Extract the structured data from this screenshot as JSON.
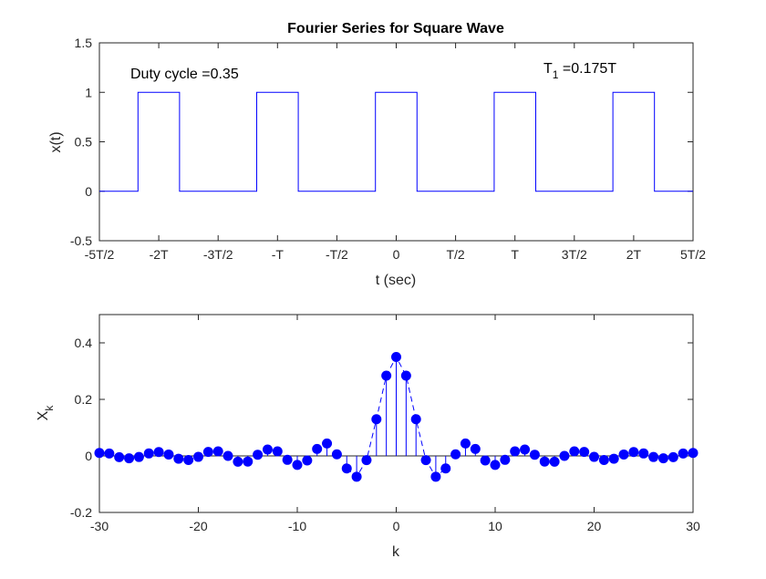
{
  "chart_data": [
    {
      "type": "line",
      "title": "Fourier Series for Square Wave",
      "xlabel": "t (sec)",
      "ylabel": "x(t)",
      "xlim": [
        -2.5,
        2.5
      ],
      "ylim": [
        -0.5,
        1.5
      ],
      "x_unit": "T",
      "xticks": [
        -2.5,
        -2,
        -1.5,
        -1,
        -0.5,
        0,
        0.5,
        1,
        1.5,
        2,
        2.5
      ],
      "xtick_labels": [
        "-5T/2",
        "-2T",
        "-3T/2",
        "-T",
        "-T/2",
        "0",
        "T/2",
        "T",
        "3T/2",
        "2T",
        "5T/2"
      ],
      "yticks": [
        -0.5,
        0,
        0.5,
        1,
        1.5
      ],
      "ytick_labels": [
        "-0.5",
        "0",
        "0.5",
        "1",
        "1.5"
      ],
      "annotations": {
        "duty_cycle": "Duty cycle =0.35",
        "t1_main": "T",
        "t1_sub": "1",
        "t1_rest": " =0.175T"
      },
      "duty_cycle": 0.35,
      "t1": 0.175,
      "pulse_centers": [
        -2,
        -1,
        0,
        1,
        2
      ],
      "low": 0,
      "high": 1,
      "color": "#0000ff",
      "grid": false
    },
    {
      "type": "scatter",
      "style": "stem with dashed envelope",
      "xlabel": "k",
      "ylabel": "X",
      "ylabel_sub": "k",
      "xlim": [
        -30,
        30
      ],
      "ylim": [
        -0.2,
        0.5
      ],
      "xticks": [
        -30,
        -20,
        -10,
        0,
        10,
        20,
        30
      ],
      "xtick_labels": [
        "-30",
        "-20",
        "-10",
        "0",
        "10",
        "20",
        "30"
      ],
      "yticks": [
        -0.2,
        0,
        0.2,
        0.4
      ],
      "ytick_labels": [
        "-0.2",
        "0",
        "0.2",
        "0.4"
      ],
      "k": [
        -30,
        -29,
        -28,
        -27,
        -26,
        -25,
        -24,
        -23,
        -22,
        -21,
        -20,
        -19,
        -18,
        -17,
        -16,
        -15,
        -14,
        -13,
        -12,
        -11,
        -10,
        -9,
        -8,
        -7,
        -6,
        -5,
        -4,
        -3,
        -2,
        -1,
        0,
        1,
        2,
        3,
        4,
        5,
        6,
        7,
        8,
        9,
        10,
        11,
        12,
        13,
        14,
        15,
        16,
        17,
        18,
        19,
        20,
        21,
        22,
        23,
        24,
        25,
        26,
        27,
        28,
        29,
        30
      ],
      "values": [
        0.0104,
        0.0085,
        -0.0045,
        -0.0084,
        -0.0038,
        0.0087,
        0.0137,
        0.005,
        -0.0099,
        -0.0146,
        -0.0034,
        0.0142,
        0.0161,
        -0.0001,
        -0.0205,
        -0.02,
        0.0042,
        0.0225,
        0.0161,
        -0.0139,
        -0.0318,
        -0.016,
        0.0247,
        0.0441,
        0.0056,
        -0.0445,
        -0.0736,
        -0.0148,
        0.1299,
        0.2839,
        0.35,
        0.2839,
        0.1299,
        -0.0148,
        -0.0736,
        -0.0445,
        0.0056,
        0.0441,
        0.0247,
        -0.016,
        -0.0318,
        -0.0139,
        0.0161,
        0.0225,
        0.0042,
        -0.02,
        -0.0205,
        -0.0001,
        0.0161,
        0.0142,
        -0.0034,
        -0.0146,
        -0.0099,
        0.005,
        0.0137,
        0.0087,
        -0.0038,
        -0.0084,
        -0.0045,
        0.0085,
        0.0104
      ],
      "envelope_range": [
        -5,
        5
      ],
      "color": "#0000ff",
      "grid": false
    }
  ]
}
